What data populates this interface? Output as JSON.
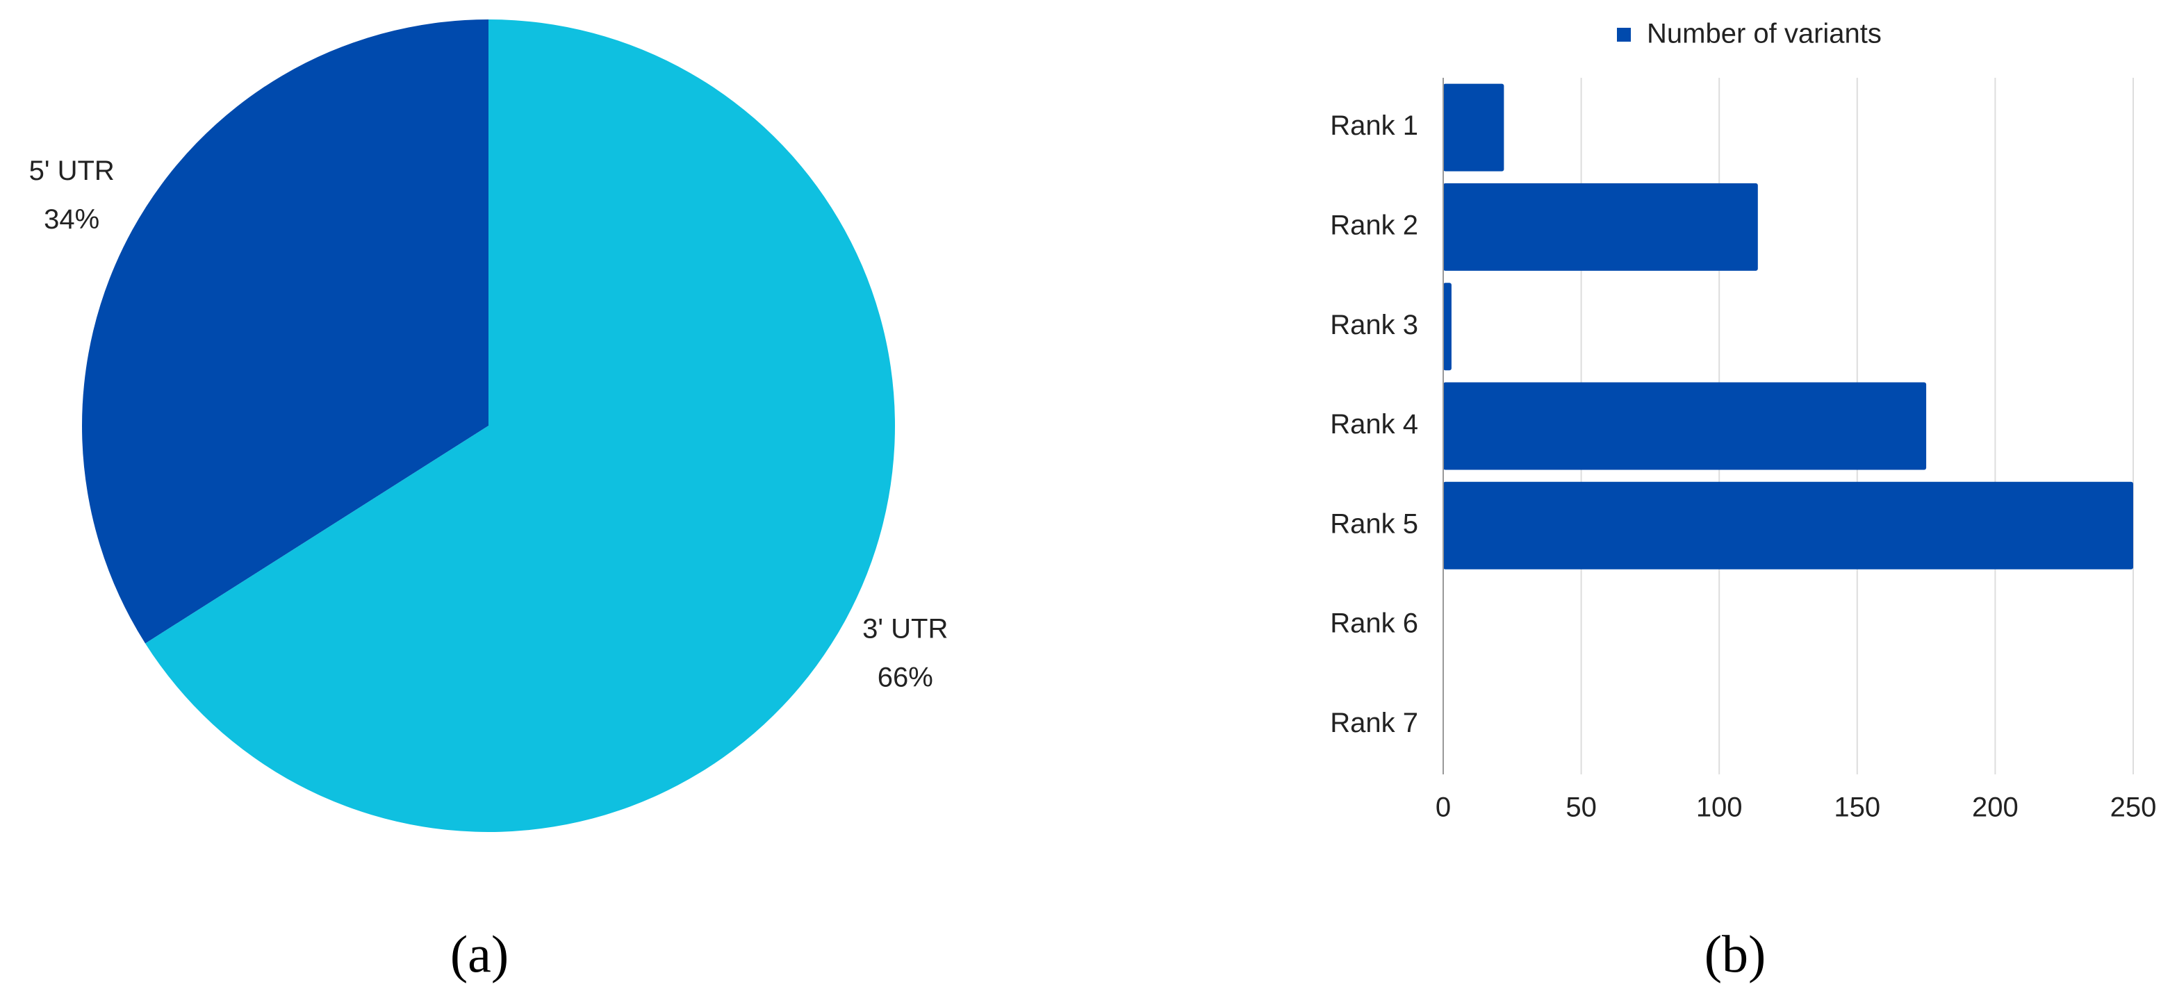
{
  "chart_data": [
    {
      "type": "pie",
      "panel_label": "(a)",
      "categories": [
        "5' UTR",
        "3' UTR"
      ],
      "values": [
        34,
        66
      ],
      "value_labels": [
        "34%",
        "66%"
      ],
      "colors": [
        "#004aad",
        "#0fc0e0"
      ]
    },
    {
      "type": "hbar",
      "panel_label": "(b)",
      "categories": [
        "Rank 1",
        "Rank 2",
        "Rank 3",
        "Rank 4",
        "Rank 5",
        "Rank 6",
        "Rank 7"
      ],
      "series": [
        {
          "name": "Number of variants",
          "color": "#004aad",
          "values": [
            22,
            114,
            3,
            175,
            250,
            0,
            0
          ]
        }
      ],
      "xlim": [
        0,
        250
      ],
      "xticks": [
        0,
        50,
        100,
        150,
        200,
        250
      ],
      "grid": true,
      "legend": "top"
    }
  ]
}
